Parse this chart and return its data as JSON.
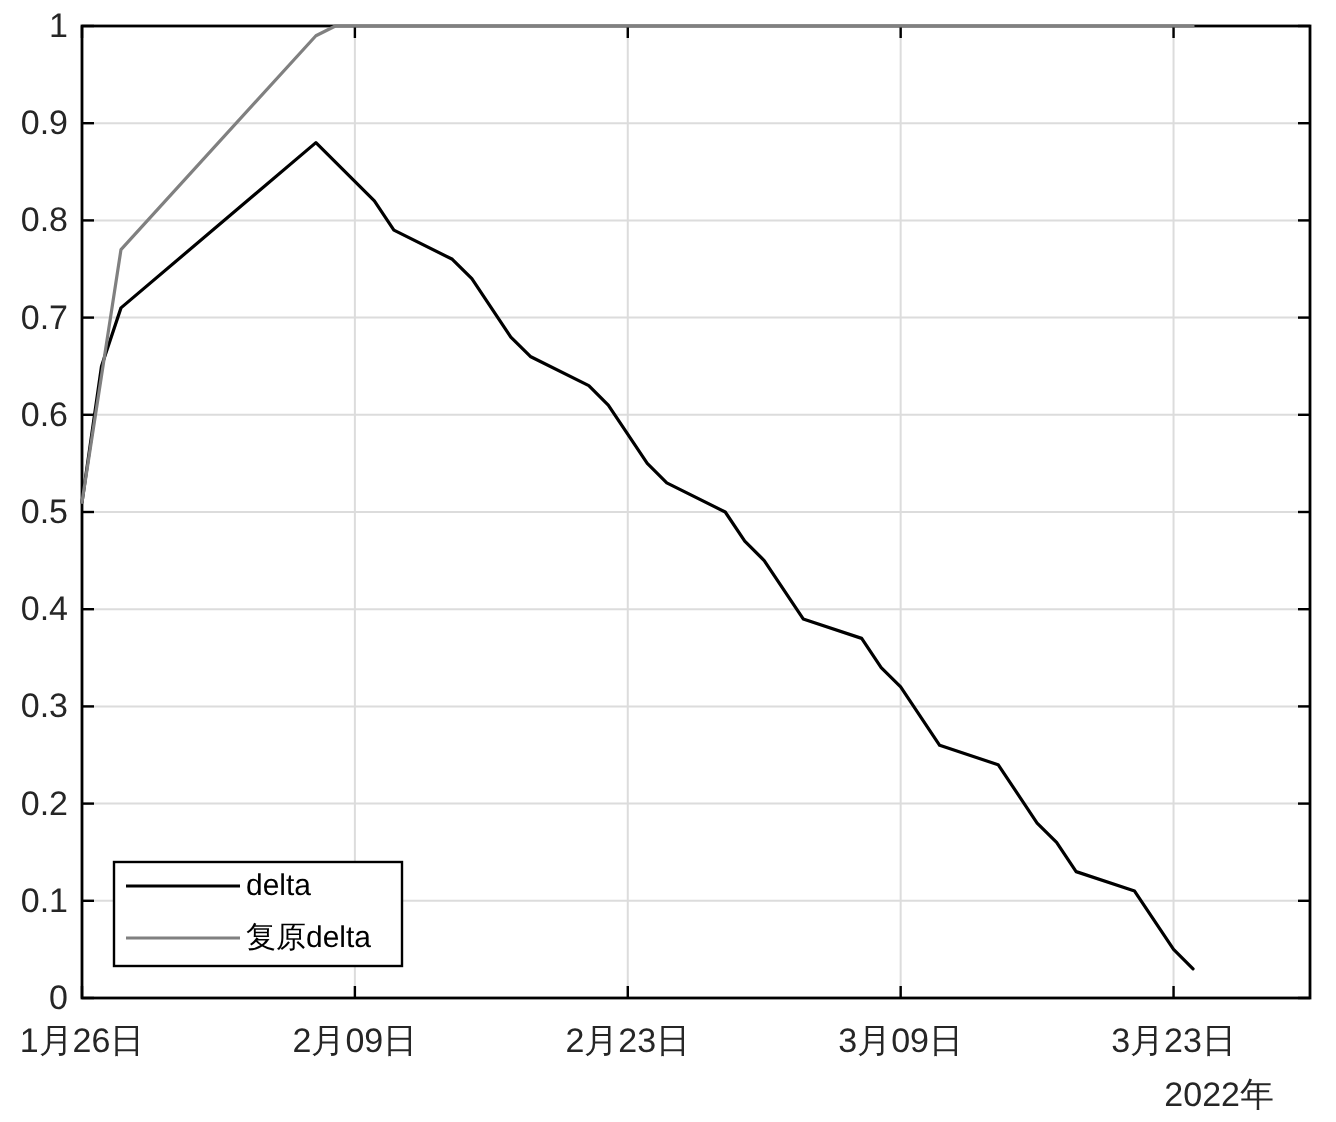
{
  "chart_data": {
    "type": "line",
    "xlim": [
      "2022-01-26",
      "2022-03-30"
    ],
    "xticks": [
      {
        "value": "2022-01-26",
        "label": "1月26日"
      },
      {
        "value": "2022-02-09",
        "label": "2月09日"
      },
      {
        "value": "2022-02-23",
        "label": "2月23日"
      },
      {
        "value": "2022-03-09",
        "label": "3月09日"
      },
      {
        "value": "2022-03-23",
        "label": "3月23日"
      }
    ],
    "ylim": [
      0,
      1
    ],
    "yticks": [
      0,
      0.1,
      0.2,
      0.3,
      0.4,
      0.5,
      0.6,
      0.7,
      0.8,
      0.9,
      1
    ],
    "grid": true,
    "legend": "bottom left",
    "line_style": "solid",
    "annotations": [
      "2022年"
    ],
    "series": [
      {
        "name": "delta",
        "color": "#000000",
        "x": [
          "2022-01-26",
          "2022-01-27",
          "2022-01-28",
          "2022-02-07",
          "2022-02-10",
          "2022-02-11",
          "2022-02-14",
          "2022-02-15",
          "2022-02-17",
          "2022-02-18",
          "2022-02-21",
          "2022-02-22",
          "2022-02-24",
          "2022-02-25",
          "2022-02-28",
          "2022-03-01",
          "2022-03-02",
          "2022-03-04",
          "2022-03-07",
          "2022-03-08",
          "2022-03-09",
          "2022-03-11",
          "2022-03-14",
          "2022-03-16",
          "2022-03-17",
          "2022-03-18",
          "2022-03-21",
          "2022-03-23",
          "2022-03-24"
        ],
        "values": [
          0.51,
          0.65,
          0.71,
          0.88,
          0.82,
          0.79,
          0.76,
          0.74,
          0.68,
          0.66,
          0.63,
          0.61,
          0.55,
          0.53,
          0.5,
          0.47,
          0.45,
          0.39,
          0.37,
          0.34,
          0.32,
          0.26,
          0.24,
          0.18,
          0.16,
          0.13,
          0.11,
          0.05,
          0.03
        ]
      },
      {
        "name": "复原delta",
        "color": "#808080",
        "x": [
          "2022-01-26",
          "2022-01-28",
          "2022-02-07",
          "2022-02-08",
          "2022-03-24"
        ],
        "values": [
          0.51,
          0.77,
          0.99,
          1,
          1
        ]
      }
    ]
  }
}
